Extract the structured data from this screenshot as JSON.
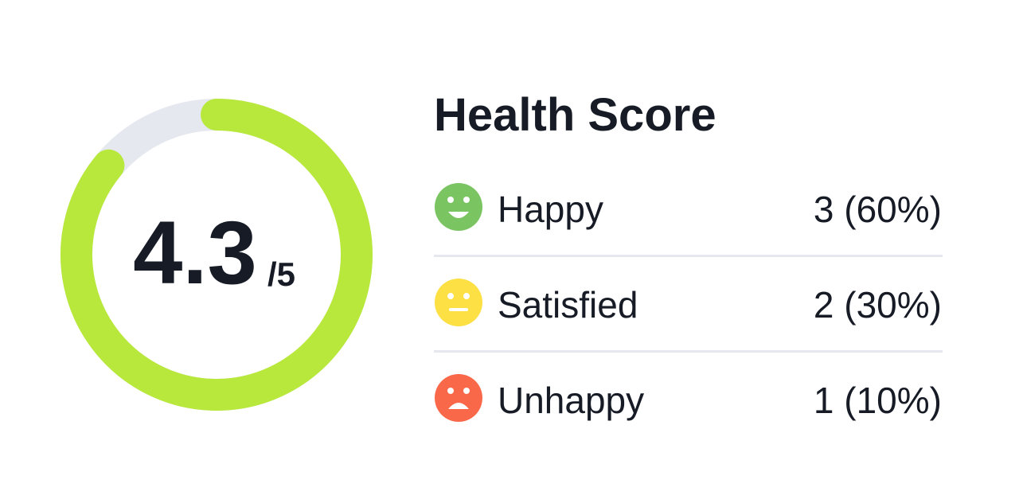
{
  "gauge": {
    "value": 4.3,
    "max": {
      "value": 5,
      "label": "/5"
    }
  },
  "title": "Health Score",
  "rows": [
    {
      "label": "Happy",
      "value": "3 (60%)"
    },
    {
      "label": "Satisfied",
      "value": "2 (30%)"
    },
    {
      "label": "Unhappy",
      "value": "1 (10%)"
    }
  ]
}
